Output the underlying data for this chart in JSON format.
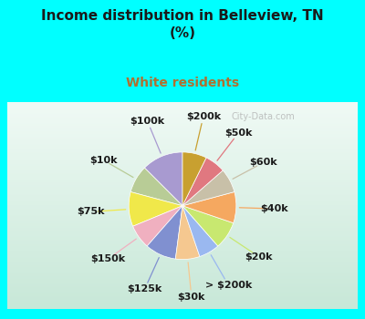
{
  "title": "Income distribution in Belleview, TN\n(%)",
  "subtitle": "White residents",
  "title_color": "#1a1a1a",
  "subtitle_color": "#b07030",
  "bg_cyan": "#00ffff",
  "chart_bg_top": "#e8f5f0",
  "chart_bg_bottom": "#c8eedd",
  "labels": [
    "$100k",
    "$10k",
    "$75k",
    "$150k",
    "$125k",
    "$30k",
    "> $200k",
    "$20k",
    "$40k",
    "$60k",
    "$50k",
    "$200k"
  ],
  "values": [
    12,
    8,
    10,
    7,
    9,
    7,
    6,
    8,
    9,
    7,
    6,
    7
  ],
  "colors": [
    "#a89ad0",
    "#b8cc96",
    "#f0e84a",
    "#f0b0c0",
    "#8090d0",
    "#f5c890",
    "#9ab8f0",
    "#c8e870",
    "#f5a860",
    "#c8c0a8",
    "#e07880",
    "#c8a030"
  ],
  "label_fontsize": 8,
  "startangle": 90,
  "watermark": "City-Data.com"
}
